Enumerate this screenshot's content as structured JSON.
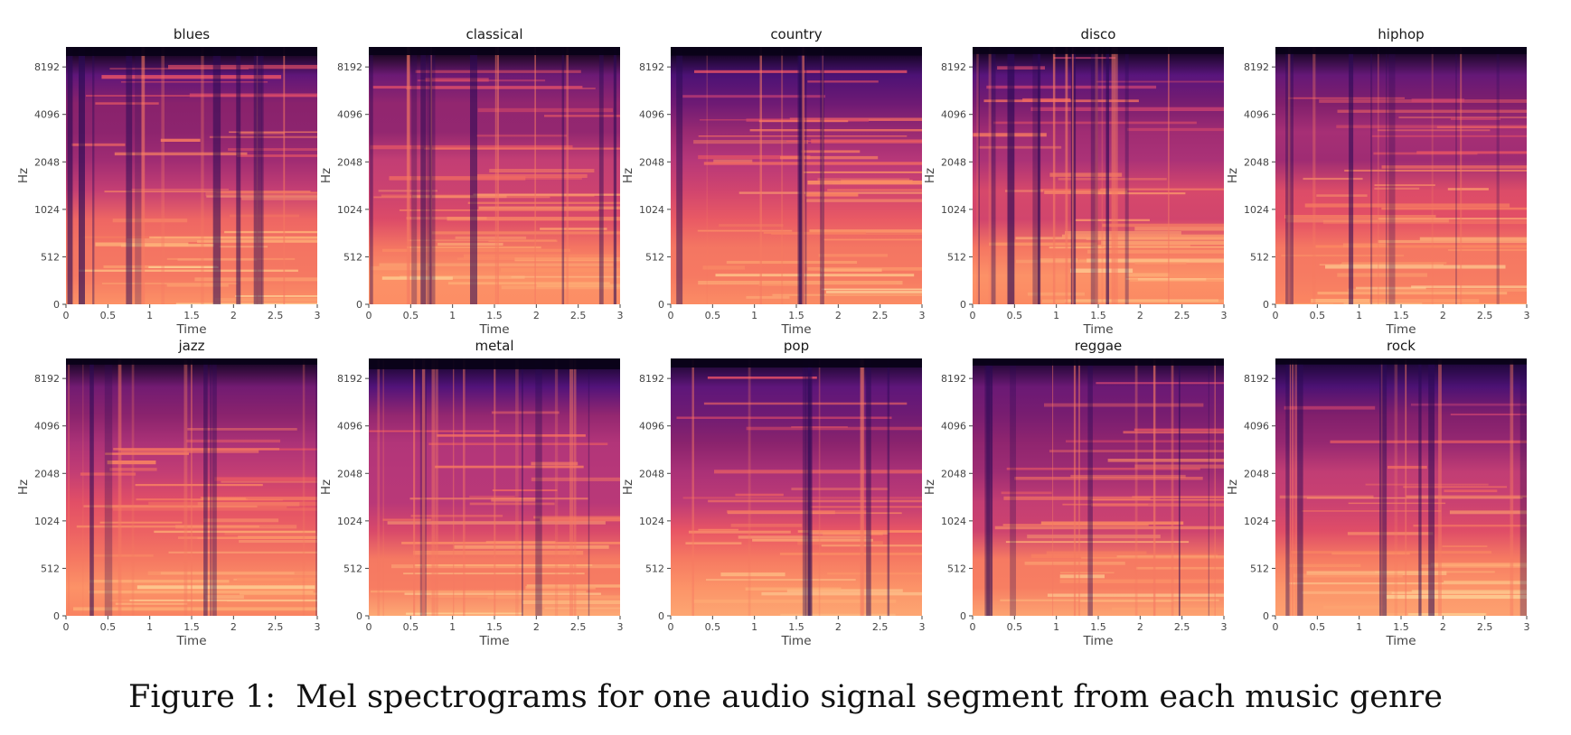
{
  "figure": {
    "caption_label": "Figure 1:",
    "caption_text": "Mel spectrograms for one audio signal segment from each music genre"
  },
  "palette": {
    "stops": [
      "#000004",
      "#2a0a57",
      "#56147d",
      "#84206b",
      "#b5367a",
      "#e65164",
      "#fb8761",
      "#feb078",
      "#fcfdbf"
    ]
  },
  "chart_data": [
    {
      "type": "heatmap",
      "title": "blues",
      "xlabel": "Time",
      "ylabel": "Hz",
      "xticks": [
        "0",
        "0.5",
        "1",
        "1.5",
        "2",
        "2.5",
        "3"
      ],
      "yticks": [
        "0",
        "512",
        "1024",
        "2048",
        "4096",
        "8192"
      ],
      "xlim": [
        0,
        3
      ]
    },
    {
      "type": "heatmap",
      "title": "classical",
      "xlabel": "Time",
      "ylabel": "Hz",
      "xticks": [
        "0",
        "0.5",
        "1",
        "1.5",
        "2",
        "2.5",
        "3"
      ],
      "yticks": [
        "0",
        "512",
        "1024",
        "2048",
        "4096",
        "8192"
      ],
      "xlim": [
        0,
        3
      ]
    },
    {
      "type": "heatmap",
      "title": "country",
      "xlabel": "Time",
      "ylabel": "Hz",
      "xticks": [
        "0",
        "0.5",
        "1",
        "1.5",
        "2",
        "2.5",
        "3"
      ],
      "yticks": [
        "0",
        "512",
        "1024",
        "2048",
        "4096",
        "8192"
      ],
      "xlim": [
        0,
        3
      ]
    },
    {
      "type": "heatmap",
      "title": "disco",
      "xlabel": "Time",
      "ylabel": "Hz",
      "xticks": [
        "0",
        "0.5",
        "1",
        "1.5",
        "2",
        "2.5",
        "3"
      ],
      "yticks": [
        "0",
        "512",
        "1024",
        "2048",
        "4096",
        "8192"
      ],
      "xlim": [
        0,
        3
      ]
    },
    {
      "type": "heatmap",
      "title": "hiphop",
      "xlabel": "Time",
      "ylabel": "Hz",
      "xticks": [
        "0",
        "0.5",
        "1",
        "1.5",
        "2",
        "2.5",
        "3"
      ],
      "yticks": [
        "0",
        "512",
        "1024",
        "2048",
        "4096",
        "8192"
      ],
      "xlim": [
        0,
        3
      ]
    },
    {
      "type": "heatmap",
      "title": "jazz",
      "xlabel": "Time",
      "ylabel": "Hz",
      "xticks": [
        "0",
        "0.5",
        "1",
        "1.5",
        "2",
        "2.5",
        "3"
      ],
      "yticks": [
        "0",
        "512",
        "1024",
        "2048",
        "4096",
        "8192"
      ],
      "xlim": [
        0,
        3
      ]
    },
    {
      "type": "heatmap",
      "title": "metal",
      "xlabel": "Time",
      "ylabel": "Hz",
      "xticks": [
        "0",
        "0.5",
        "1",
        "1.5",
        "2",
        "2.5",
        "3"
      ],
      "yticks": [
        "0",
        "512",
        "1024",
        "2048",
        "4096",
        "8192"
      ],
      "xlim": [
        0,
        3
      ]
    },
    {
      "type": "heatmap",
      "title": "pop",
      "xlabel": "Time",
      "ylabel": "Hz",
      "xticks": [
        "0",
        "0.5",
        "1",
        "1.5",
        "2",
        "2.5",
        "3"
      ],
      "yticks": [
        "0",
        "512",
        "1024",
        "2048",
        "4096",
        "8192"
      ],
      "xlim": [
        0,
        3
      ]
    },
    {
      "type": "heatmap",
      "title": "reggae",
      "xlabel": "Time",
      "ylabel": "Hz",
      "xticks": [
        "0",
        "0.5",
        "1",
        "1.5",
        "2",
        "2.5",
        "3"
      ],
      "yticks": [
        "0",
        "512",
        "1024",
        "2048",
        "4096",
        "8192"
      ],
      "xlim": [
        0,
        3
      ]
    },
    {
      "type": "heatmap",
      "title": "rock",
      "xlabel": "Time",
      "ylabel": "Hz",
      "xticks": [
        "0",
        "0.5",
        "1",
        "1.5",
        "2",
        "2.5",
        "3"
      ],
      "yticks": [
        "0",
        "512",
        "1024",
        "2048",
        "4096",
        "8192"
      ],
      "xlim": [
        0,
        3
      ]
    }
  ]
}
